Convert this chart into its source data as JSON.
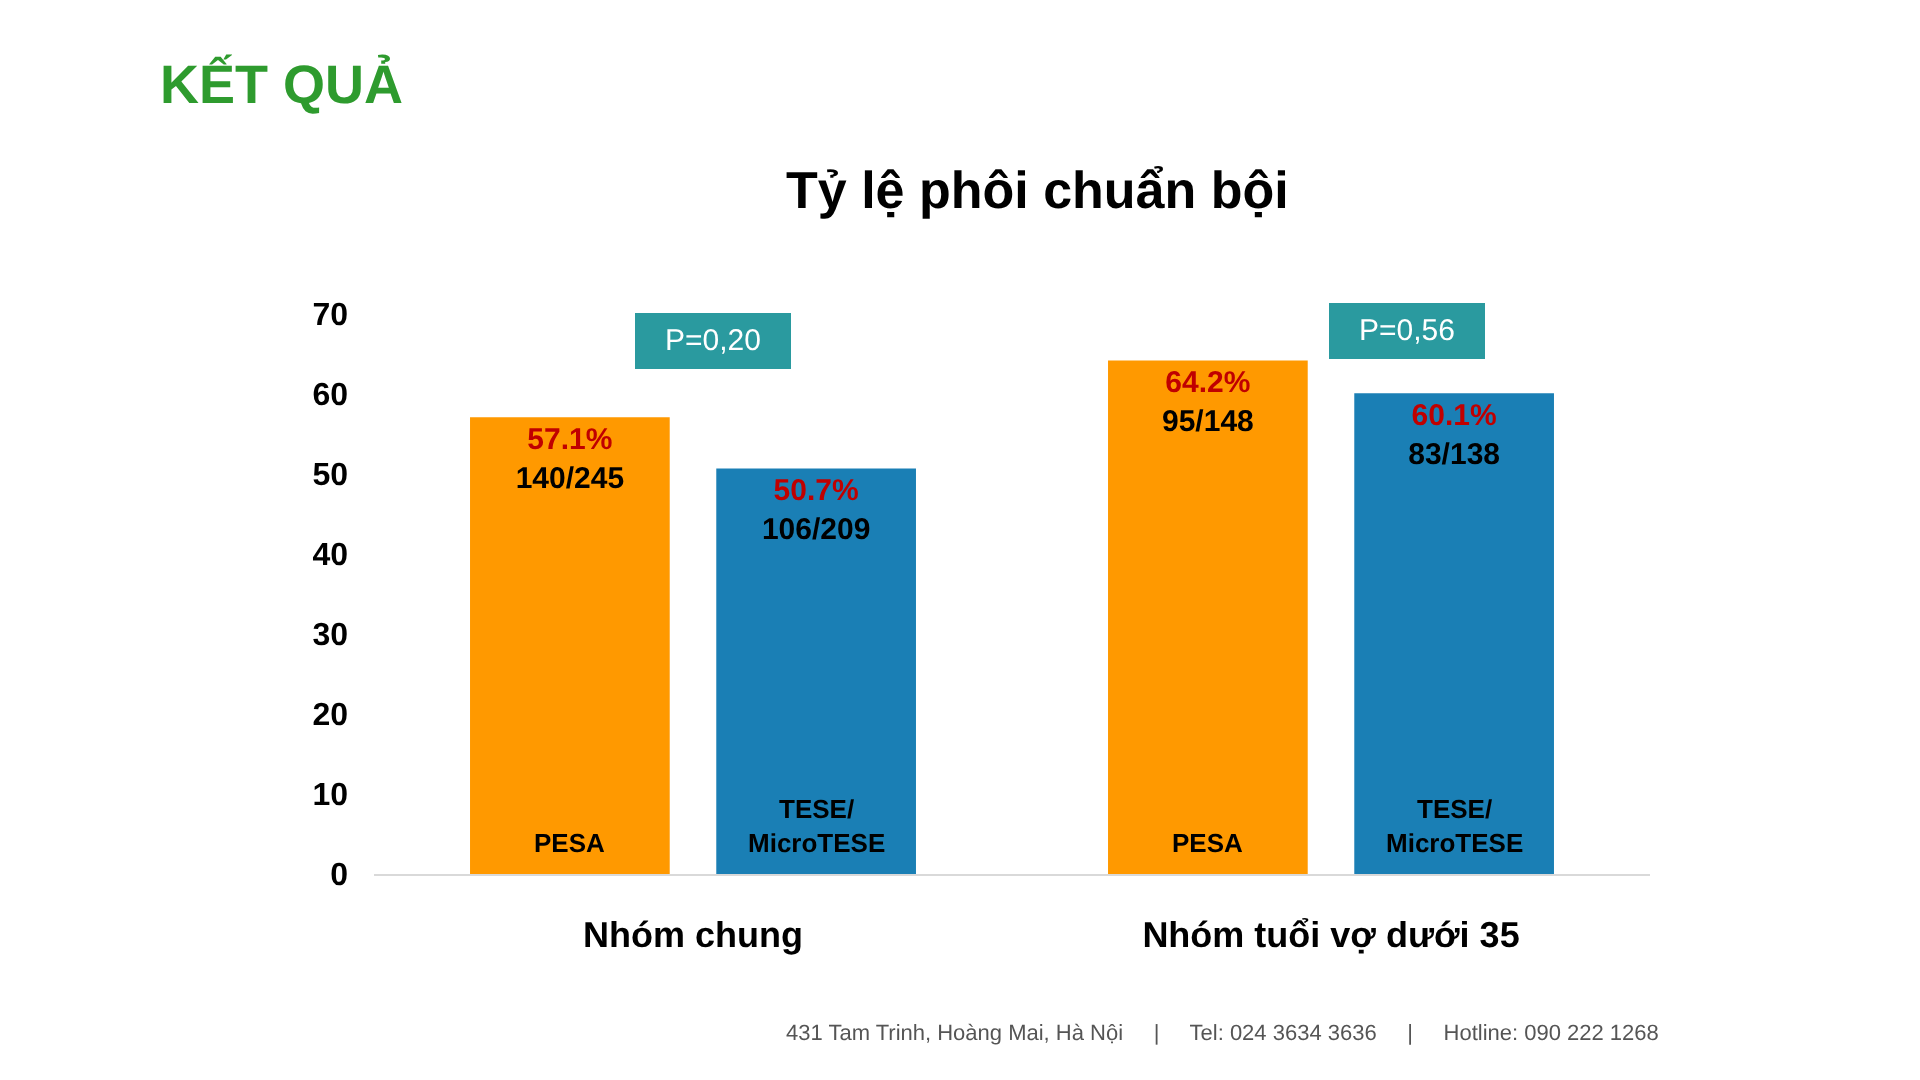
{
  "chart_data": {
    "type": "bar",
    "title": "KẾT QUẢ",
    "subtitle": "Tỷ lệ phôi chuẩn bội",
    "categories": [
      "Nhóm chung",
      "Nhóm tuổi vợ dưới 35"
    ],
    "series": [
      {
        "name": "PESA",
        "color": "#ff9900",
        "values": [
          57.1,
          64.2
        ],
        "value_labels": [
          "57.1%\n140/245",
          "64.2%\n95/148"
        ]
      },
      {
        "name": "TESE/\nMicroTESE",
        "color": "#1a7fb5",
        "values": [
          50.7,
          60.1
        ],
        "value_labels": [
          "50.7%\n106/209",
          "60.1%\n83/138"
        ]
      }
    ],
    "ylim": [
      0,
      70
    ],
    "yticks": [
      0,
      10,
      20,
      30,
      40,
      50,
      60,
      70
    ],
    "legend": false,
    "annotations": [
      "P=0,20",
      "P=0,56",
      "431 Tam Trinh, Hoàng Mai, Hà Nội     |     Tel: 024 3634 3636     |     Hotline: 090 222 1268"
    ]
  }
}
